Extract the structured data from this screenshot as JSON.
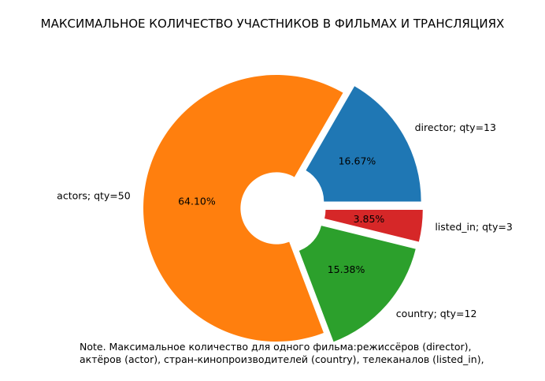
{
  "chart_data": {
    "type": "pie",
    "style": "donut",
    "title": "МАКСИМАЛЬНОЕ КОЛИЧЕСТВО УЧАСТНИКОВ В ФИЛЬМАХ И ТРАНСЛЯЦИЯХ",
    "slices": [
      {
        "label": "director; qty=13",
        "value": 13,
        "percent": "16.67%",
        "color": "#1f77b4",
        "explode": 0.1
      },
      {
        "label": "actors; qty=50",
        "value": 50,
        "percent": "64.10%",
        "color": "#ff7f0e",
        "explode": 0.0
      },
      {
        "label": "country; qty=12",
        "value": 12,
        "percent": "15.38%",
        "color": "#2ca02c",
        "explode": 0.1
      },
      {
        "label": "listed_in; qty=3",
        "value": 3,
        "percent": "3.85%",
        "color": "#d62728",
        "explode": 0.1
      }
    ],
    "start_angle": 0,
    "direction": "counterclockwise",
    "legend": "none",
    "note": [
      "Note. Максимальное количество для одного фильма:режиссёров (director),",
      "актёров (actor), стран-кинопроизводителей (country), телеканалов (listed_in),"
    ]
  }
}
